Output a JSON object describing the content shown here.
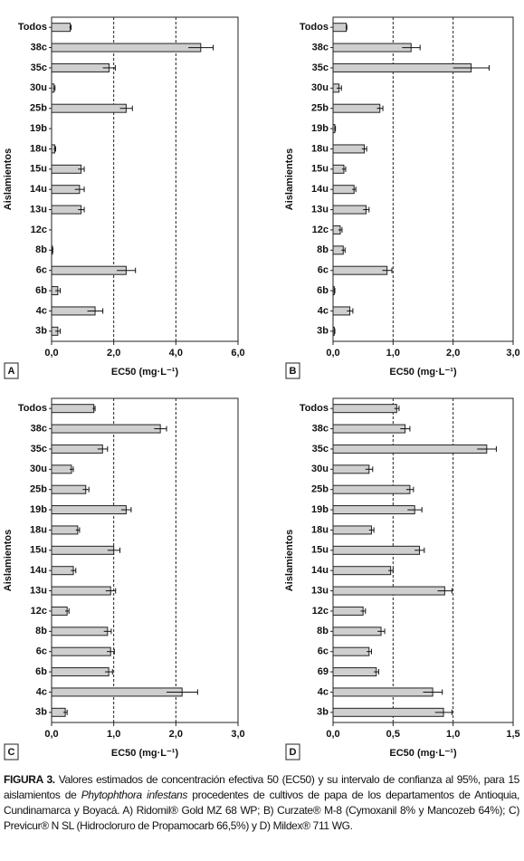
{
  "chart_data": [
    {
      "type": "bar",
      "orientation": "horizontal",
      "panel": "A",
      "ylabel": "Aislamientos",
      "xlabel": "EC50 (mg·L⁻¹)",
      "categories": [
        "Todos",
        "38c",
        "35c",
        "30u",
        "25b",
        "19b",
        "18u",
        "15u",
        "14u",
        "13u",
        "12c",
        "8b",
        "6c",
        "6b",
        "4c",
        "3b"
      ],
      "values": [
        0.6,
        4.8,
        1.85,
        0.08,
        2.4,
        0,
        0.1,
        0.95,
        0.9,
        0.95,
        0,
        0.03,
        2.4,
        0.2,
        1.4,
        0.2
      ],
      "errors": [
        0.03,
        0.4,
        0.2,
        0.03,
        0.2,
        0,
        0.03,
        0.1,
        0.15,
        0.1,
        0,
        0.01,
        0.3,
        0.08,
        0.25,
        0.08
      ],
      "xlim": [
        0,
        6
      ],
      "xticks": [
        {
          "value": 0,
          "label": "0,0"
        },
        {
          "value": 2,
          "label": "2,0"
        },
        {
          "value": 4,
          "label": "4,0"
        },
        {
          "value": 6,
          "label": "6,0"
        }
      ],
      "grid": true,
      "color": "#cfcfcf"
    },
    {
      "type": "bar",
      "orientation": "horizontal",
      "panel": "B",
      "ylabel": "Aislamientos",
      "xlabel": "EC50 (mg·L⁻¹)",
      "categories": [
        "Todos",
        "38c",
        "35c",
        "30u",
        "25b",
        "19b",
        "18u",
        "15u",
        "14u",
        "13u",
        "12c",
        "8b",
        "6c",
        "6b",
        "4c",
        "3b"
      ],
      "values": [
        0.22,
        1.3,
        2.3,
        0.1,
        0.78,
        0.03,
        0.52,
        0.18,
        0.35,
        0.55,
        0.12,
        0.17,
        0.9,
        0.02,
        0.28,
        0.02
      ],
      "errors": [
        0.01,
        0.15,
        0.3,
        0.04,
        0.05,
        0.01,
        0.04,
        0.03,
        0.03,
        0.05,
        0.03,
        0.03,
        0.08,
        0.01,
        0.05,
        0.01
      ],
      "xlim": [
        0,
        3
      ],
      "xticks": [
        {
          "value": 0,
          "label": "0,0"
        },
        {
          "value": 1,
          "label": "1,0"
        },
        {
          "value": 2,
          "label": "2,0"
        },
        {
          "value": 3,
          "label": "3,0"
        }
      ],
      "grid": true,
      "color": "#cfcfcf"
    },
    {
      "type": "bar",
      "orientation": "horizontal",
      "panel": "C",
      "ylabel": "Aislamientos",
      "xlabel": "EC50 (mg·L⁻¹)",
      "categories": [
        "Todos",
        "38c",
        "35c",
        "30u",
        "25b",
        "19b",
        "18u",
        "15u",
        "14u",
        "13u",
        "12c",
        "8b",
        "6c",
        "6b",
        "4c",
        "3b"
      ],
      "values": [
        0.68,
        1.75,
        0.82,
        0.32,
        0.55,
        1.2,
        0.42,
        1.0,
        0.35,
        0.95,
        0.25,
        0.9,
        0.95,
        0.92,
        2.1,
        0.22
      ],
      "errors": [
        0.02,
        0.1,
        0.08,
        0.03,
        0.05,
        0.08,
        0.03,
        0.1,
        0.04,
        0.08,
        0.03,
        0.06,
        0.06,
        0.06,
        0.25,
        0.03
      ],
      "xlim": [
        0,
        3
      ],
      "xticks": [
        {
          "value": 0,
          "label": "0,0"
        },
        {
          "value": 1,
          "label": "1,0"
        },
        {
          "value": 2,
          "label": "2,0"
        },
        {
          "value": 3,
          "label": "3,0"
        }
      ],
      "grid": true,
      "color": "#cfcfcf"
    },
    {
      "type": "bar",
      "orientation": "horizontal",
      "panel": "D",
      "ylabel": "Aislamientos",
      "xlabel": "EC50 (mg·L⁻¹)",
      "categories": [
        "Todos",
        "38c",
        "35c",
        "30u",
        "25b",
        "19b",
        "18u",
        "15u",
        "14u",
        "13u",
        "12c",
        "8b",
        "6c",
        "69",
        "4c",
        "3b"
      ],
      "values": [
        0.53,
        0.6,
        1.28,
        0.3,
        0.64,
        0.68,
        0.32,
        0.72,
        0.48,
        0.93,
        0.25,
        0.4,
        0.3,
        0.36,
        0.83,
        0.92
      ],
      "errors": [
        0.02,
        0.04,
        0.08,
        0.03,
        0.03,
        0.06,
        0.02,
        0.04,
        0.02,
        0.06,
        0.02,
        0.03,
        0.02,
        0.02,
        0.08,
        0.07
      ],
      "xlim": [
        0,
        1.5
      ],
      "xticks": [
        {
          "value": 0,
          "label": "0,0"
        },
        {
          "value": 0.5,
          "label": "0,5"
        },
        {
          "value": 1,
          "label": "1,0"
        },
        {
          "value": 1.5,
          "label": "1,5"
        }
      ],
      "grid": true,
      "color": "#cfcfcf"
    }
  ],
  "caption": {
    "label": "FIGURA 3.",
    "before": " Valores estimados de concentración efectiva 50 (EC50) y su intervalo de confianza al 95%, para 15 aislamientos de ",
    "species": "Phytophthora infestans",
    "after": " procedentes de cultivos de papa de los departamentos de Antioquia, Cundinamarca y Boyacá. A) Ridomil® Gold MZ 68 WP; B) Curzate® M-8 (Cymoxanil 8% y Mancozeb 64%); C) Previcur® N SL (Hidrocloruro de Propamocarb 66,5%) y D) Mildex® 711 WG."
  }
}
